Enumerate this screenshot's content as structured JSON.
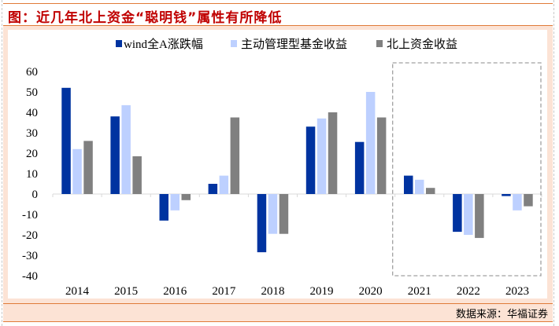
{
  "title": "图：近几年北上资金“聪明钱”属性有所降低",
  "source": "数据来源：华福证券",
  "colors": {
    "title": "#c00000",
    "frame_line": "#e07b39",
    "frame_fill": "#fce3d5",
    "highlight_box": "#a0a0a0"
  },
  "chart_data": {
    "type": "bar",
    "title": "近几年北上资金“聪明钱”属性有所降低",
    "xlabel": "",
    "ylabel": "",
    "categories": [
      "2014",
      "2015",
      "2016",
      "2017",
      "2018",
      "2019",
      "2020",
      "2021",
      "2022",
      "2023"
    ],
    "series": [
      {
        "name": "wind全A涨跌幅",
        "color": "#0033a0",
        "values": [
          52,
          38,
          -13,
          5,
          -28.5,
          33,
          25.5,
          9,
          -18.5,
          -1
        ]
      },
      {
        "name": "主动管理型基金收益",
        "color": "#bdd0ff",
        "values": [
          22,
          43.5,
          -8,
          9,
          -19.5,
          37,
          50,
          7,
          -20,
          -8
        ]
      },
      {
        "name": "北上资金收益",
        "color": "#808080",
        "values": [
          26,
          18.5,
          -3,
          37.5,
          -19.5,
          40,
          37.5,
          3,
          -21.5,
          -6
        ]
      }
    ],
    "ylim": [
      -40,
      60
    ],
    "yticks": [
      60,
      50,
      40,
      30,
      20,
      10,
      0,
      -10,
      -20,
      -30,
      -40
    ],
    "grid": false,
    "legend": "top",
    "annotation": {
      "type": "dashed-box",
      "covers_categories": [
        "2021",
        "2022",
        "2023"
      ]
    }
  }
}
